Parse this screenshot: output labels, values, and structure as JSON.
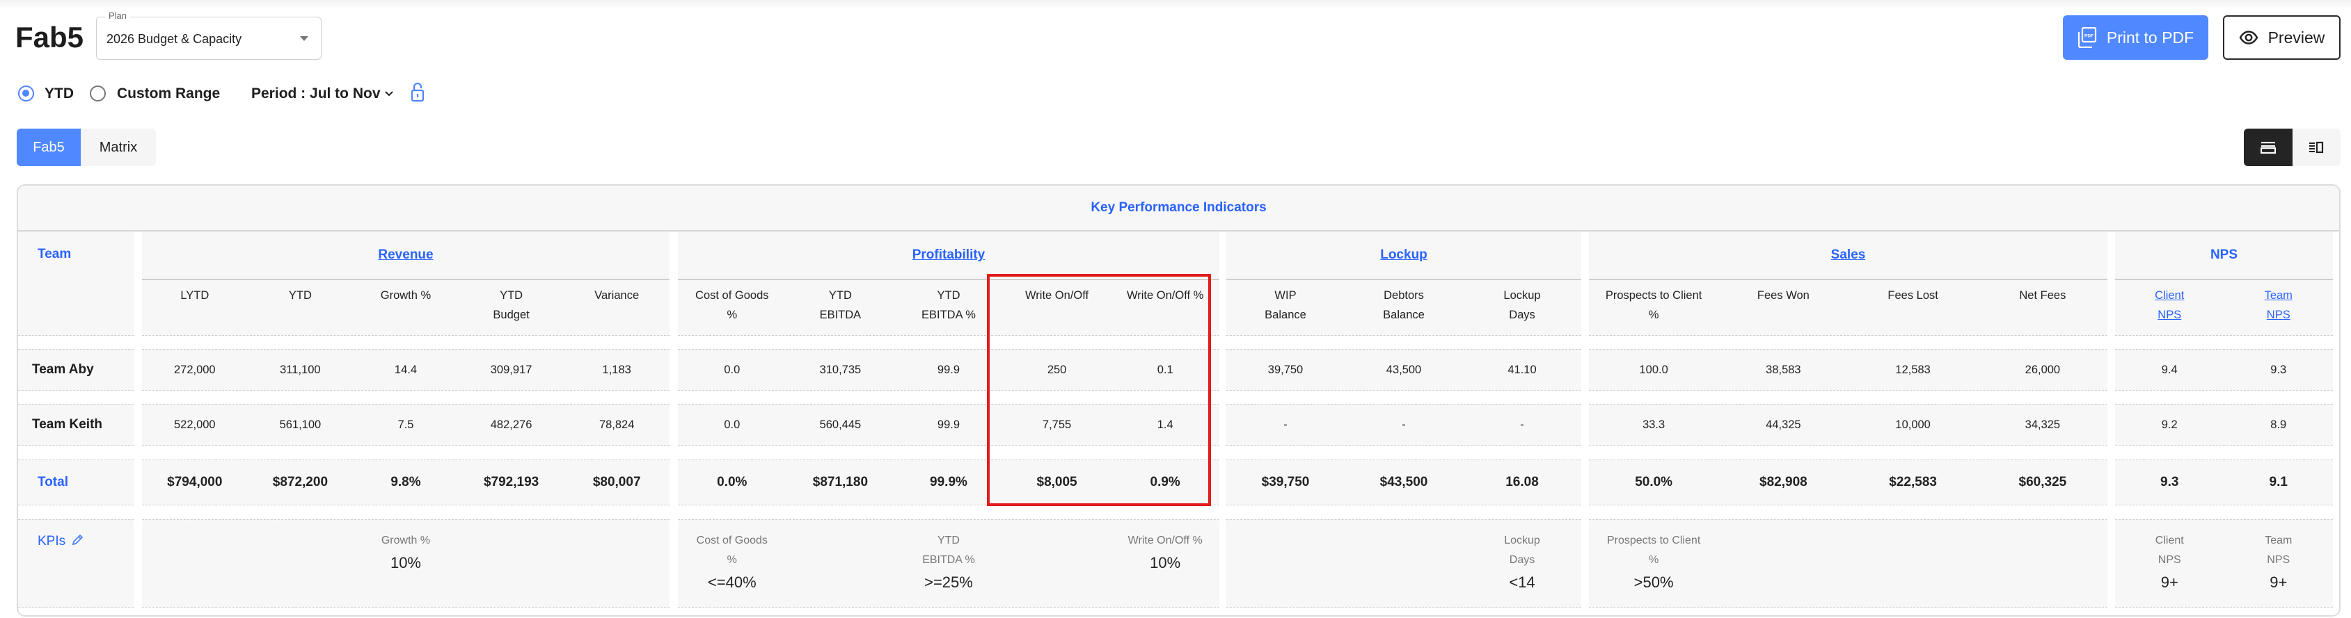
{
  "header": {
    "title": "Fab5",
    "plan_label": "Plan",
    "plan_value": "2026 Budget & Capacity",
    "print_label": "Print to PDF",
    "preview_label": "Preview"
  },
  "filters": {
    "ytd_label": "YTD",
    "ytd_selected": true,
    "custom_label": "Custom Range",
    "custom_selected": false,
    "period_label": "Period : Jul to Nov"
  },
  "tabs": [
    {
      "label": "Fab5",
      "active": true
    },
    {
      "label": "Matrix",
      "active": false
    }
  ],
  "view_toggle": {
    "options": [
      "list-view-icon",
      "split-view-icon"
    ],
    "active": 0
  },
  "colors": {
    "accent": "#5088ff",
    "link": "#2962ff",
    "highlight": "#e31b1b",
    "cell_bg": "#f7f7f7"
  },
  "table": {
    "title": "Key Performance Indicators",
    "team_header": "Team",
    "groups": [
      {
        "name": "Revenue",
        "link": true,
        "columns": [
          {
            "label": [
              "LYTD"
            ]
          },
          {
            "label": [
              "YTD"
            ]
          },
          {
            "label": [
              "Growth %"
            ]
          },
          {
            "label": [
              "YTD",
              "Budget"
            ]
          },
          {
            "label": [
              "Variance"
            ]
          }
        ]
      },
      {
        "name": "Profitability",
        "link": true,
        "columns": [
          {
            "label": [
              "Cost of Goods",
              "%"
            ]
          },
          {
            "label": [
              "YTD",
              "EBITDA"
            ]
          },
          {
            "label": [
              "YTD",
              "EBITDA %"
            ]
          },
          {
            "label": [
              "Write On/Off"
            ]
          },
          {
            "label": [
              "Write On/Off %"
            ]
          }
        ]
      },
      {
        "name": "Lockup",
        "link": true,
        "columns": [
          {
            "label": [
              "WIP",
              "Balance"
            ]
          },
          {
            "label": [
              "Debtors",
              "Balance"
            ]
          },
          {
            "label": [
              "Lockup",
              "Days"
            ]
          }
        ]
      },
      {
        "name": "Sales",
        "link": true,
        "columns": [
          {
            "label": [
              "Prospects to Client",
              "%"
            ]
          },
          {
            "label": [
              "Fees Won"
            ]
          },
          {
            "label": [
              "Fees Lost"
            ]
          },
          {
            "label": [
              "Net Fees"
            ]
          }
        ]
      },
      {
        "name": "NPS",
        "link": false,
        "columns": [
          {
            "label": [
              "Client",
              "NPS"
            ],
            "link": true
          },
          {
            "label": [
              "Team",
              "NPS"
            ],
            "link": true
          }
        ]
      }
    ],
    "rows": [
      {
        "team": "Team Aby",
        "values": [
          [
            "272,000",
            "311,100",
            "14.4",
            "309,917",
            "1,183"
          ],
          [
            "0.0",
            "310,735",
            "99.9",
            "250",
            "0.1"
          ],
          [
            "39,750",
            "43,500",
            "41.10"
          ],
          [
            "100.0",
            "38,583",
            "12,583",
            "26,000"
          ],
          [
            "9.4",
            "9.3"
          ]
        ]
      },
      {
        "team": "Team Keith",
        "values": [
          [
            "522,000",
            "561,100",
            "7.5",
            "482,276",
            "78,824"
          ],
          [
            "0.0",
            "560,445",
            "99.9",
            "7,755",
            "1.4"
          ],
          [
            "-",
            "-",
            "-"
          ],
          [
            "33.3",
            "44,325",
            "10,000",
            "34,325"
          ],
          [
            "9.2",
            "8.9"
          ]
        ]
      }
    ],
    "total": {
      "label": "Total",
      "values": [
        [
          "$794,000",
          "$872,200",
          "9.8%",
          "$792,193",
          "$80,007"
        ],
        [
          "0.0%",
          "$871,180",
          "99.9%",
          "$8,005",
          "0.9%"
        ],
        [
          "$39,750",
          "$43,500",
          "16.08"
        ],
        [
          "50.0%",
          "$82,908",
          "$22,583",
          "$60,325"
        ],
        [
          "9.3",
          "9.1"
        ]
      ]
    },
    "kpis": {
      "label": "KPIs",
      "values": [
        [
          null,
          null,
          {
            "label": [
              "Growth %"
            ],
            "value": "10%"
          },
          null,
          null
        ],
        [
          {
            "label": [
              "Cost of Goods",
              "%"
            ],
            "value": "<=40%"
          },
          null,
          {
            "label": [
              "YTD",
              "EBITDA %"
            ],
            "value": ">=25%"
          },
          null,
          {
            "label": [
              "Write On/Off %"
            ],
            "value": "10%"
          }
        ],
        [
          null,
          null,
          {
            "label": [
              "Lockup",
              "Days"
            ],
            "value": "<14"
          }
        ],
        [
          {
            "label": [
              "Prospects to Client",
              "%"
            ],
            "value": ">50%"
          },
          null,
          null,
          null
        ],
        [
          {
            "label": [
              "Client",
              "NPS"
            ],
            "value": "9+"
          },
          {
            "label": [
              "Team",
              "NPS"
            ],
            "value": "9+"
          }
        ]
      ]
    }
  }
}
